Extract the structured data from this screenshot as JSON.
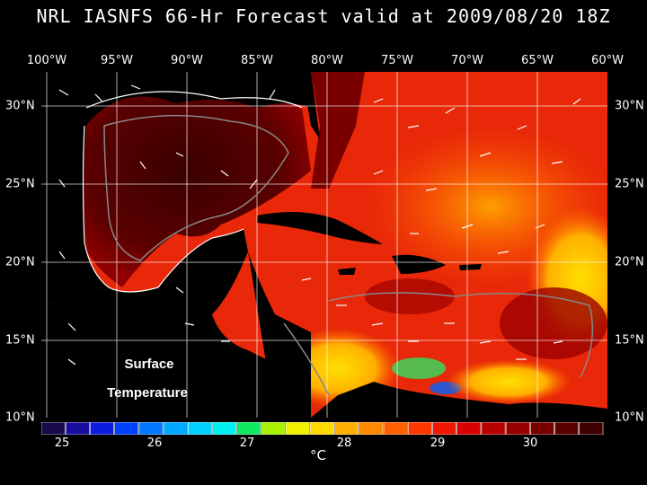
{
  "title": "NRL IASNFS  66-Hr Forecast valid at 2009/08/20 18Z",
  "longitude_labels": [
    "100°W",
    "95°W",
    "90°W",
    "85°W",
    "80°W",
    "75°W",
    "70°W",
    "65°W",
    "60°W"
  ],
  "latitude_labels": [
    "30°N",
    "25°N",
    "20°N",
    "15°N",
    "10°N"
  ],
  "map_label_line1": "Surface",
  "map_label_line2": "Temperature",
  "colorbar": {
    "ticks": [
      "25",
      "26",
      "27",
      "28",
      "29",
      "30"
    ],
    "unit": "°C",
    "colors": [
      "#1a0a4a",
      "#1a0ea0",
      "#0c1ce0",
      "#0040ff",
      "#0078ff",
      "#00a8ff",
      "#00d0ff",
      "#00f0f0",
      "#10e860",
      "#a8f000",
      "#f0f000",
      "#ffd800",
      "#ffb000",
      "#ff8800",
      "#ff6000",
      "#ff3800",
      "#f01800",
      "#d80000",
      "#b80000",
      "#980000",
      "#780000",
      "#5a0000",
      "#3c0000"
    ]
  }
}
